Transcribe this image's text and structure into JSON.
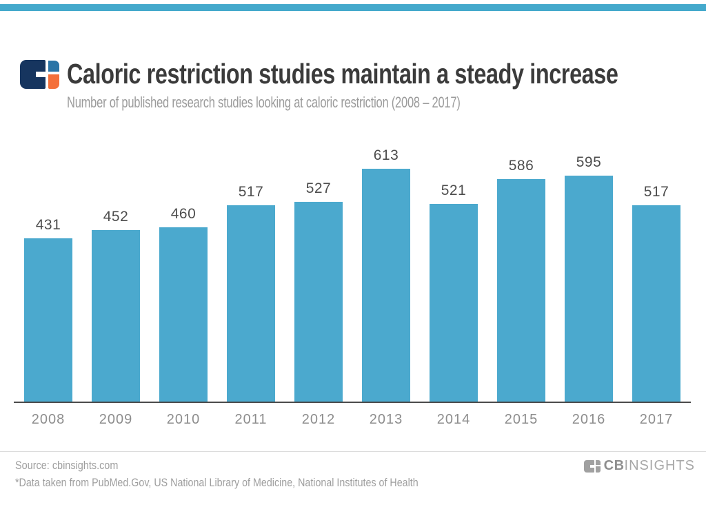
{
  "header": {
    "title": "Caloric restriction studies maintain a steady increase",
    "subtitle": "Number of published research studies looking at caloric restriction (2008 – 2017)"
  },
  "chart_data": {
    "type": "bar",
    "title": "Caloric restriction studies maintain a steady increase",
    "subtitle": "Number of published research studies looking at caloric restriction (2008 – 2017)",
    "categories": [
      "2008",
      "2009",
      "2010",
      "2011",
      "2012",
      "2013",
      "2014",
      "2015",
      "2016",
      "2017"
    ],
    "values": [
      431,
      452,
      460,
      517,
      527,
      613,
      521,
      586,
      595,
      517
    ],
    "xlabel": "",
    "ylabel": "Number of published research studies",
    "ylim": [
      0,
      613
    ],
    "grid": false,
    "legend": false,
    "value_labels_shown": true,
    "bar_color": "#4BA9CE"
  },
  "footer": {
    "source_line": "Source: cbinsights.com",
    "note_line": "*Data taken from PubMed.Gov, US National Library of Medicine, National Institutes of Health",
    "brand_cb": "CB",
    "brand_insights": "INSIGHTS"
  },
  "colors": {
    "accent_teal": "#44A9CC",
    "bar_fill": "#4BA9CE",
    "title_text": "#3B3B3B",
    "subtitle_text": "#9B9B9B",
    "value_text": "#4D4D4D",
    "year_text": "#8D8D8D",
    "axis_line": "#4B4B4B",
    "footer_text": "#9E9E9E",
    "logo_navy": "#16355F",
    "logo_blue": "#2A74A6",
    "logo_orange": "#F4703A",
    "brand_gray": "#A0A0A0"
  }
}
